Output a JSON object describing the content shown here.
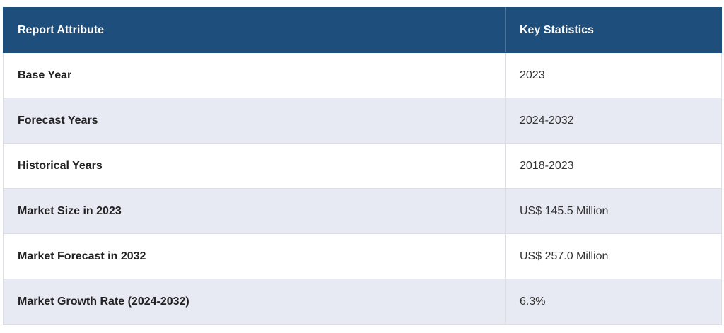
{
  "table": {
    "headers": [
      "Report Attribute",
      "Key Statistics"
    ],
    "rows": [
      {
        "attribute": "Base Year",
        "value": "2023"
      },
      {
        "attribute": "Forecast Years",
        "value": "2024-2032"
      },
      {
        "attribute": "Historical Years",
        "value": "2018-2023"
      },
      {
        "attribute": "Market Size in 2023",
        "value": "US$ 145.5 Million"
      },
      {
        "attribute": "Market Forecast in 2032",
        "value": "US$ 257.0 Million"
      },
      {
        "attribute": "Market Growth Rate (2024-2032)",
        "value": "6.3%"
      }
    ],
    "colors": {
      "header_bg": "#1e4f7c",
      "header_text": "#ffffff",
      "row_alt_bg": "#e7e9f3",
      "row_bg": "#ffffff"
    }
  }
}
